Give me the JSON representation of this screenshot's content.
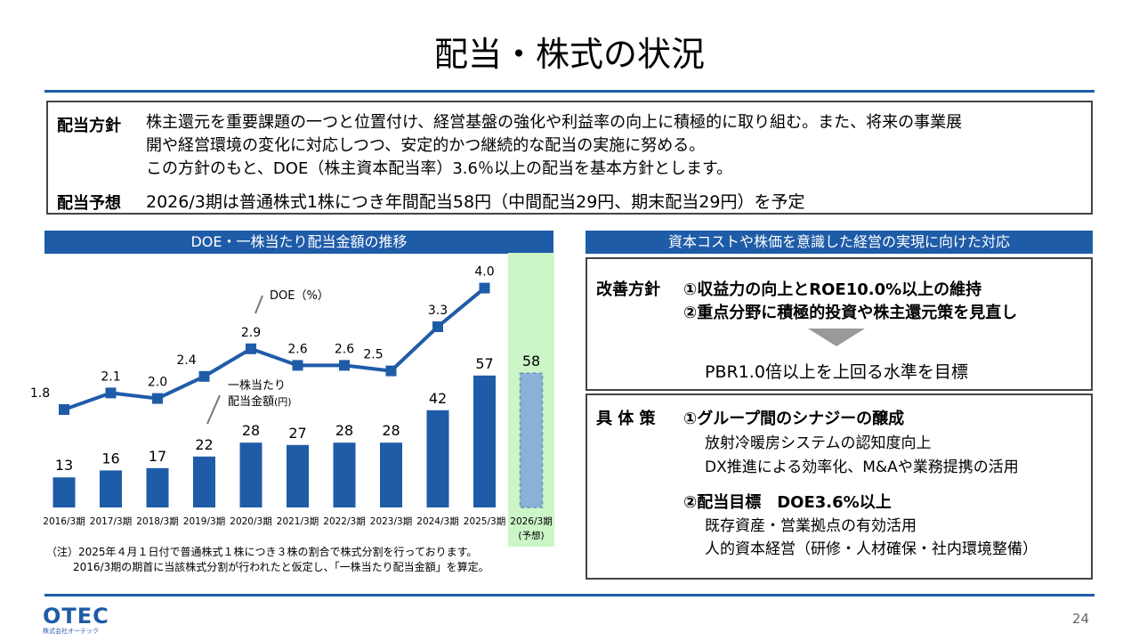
{
  "title": "配当・株式の状況",
  "policy": {
    "label1": "配当方針",
    "lines": [
      "株主還元を重要課題の一つと位置付け、経営基盤の強化や利益率の向上に積極的に取り組む。また、将来の事業展",
      "開や経営環境の変化に対応しつつ、安定的かつ継続的な配当の実施に努める。",
      "この方針のもと、DOE（株主資本配当率）3.6％以上の配当を基本方針とします。"
    ],
    "label2": "配当予想",
    "forecast": "2026/3期は普通株式1株につき年間配当58円（中間配当29円、期末配当29円）を予定"
  },
  "left_header": "DOE・一株当たり配当金額の推移",
  "right_header": "資本コストや株価を意識した経営の実現に向けた対応",
  "legend": {
    "doe": "DOE（%）",
    "dps_line1": "一株当たり",
    "dps_line2": "配当金額",
    "dps_unit": "(円)"
  },
  "chart_data": {
    "type": "bar+line",
    "categories": [
      "2016/3期",
      "2017/3期",
      "2018/3期",
      "2019/3期",
      "2020/3期",
      "2021/3期",
      "2022/3期",
      "2023/3期",
      "2024/3期",
      "2025/3期",
      "2026/3期"
    ],
    "category_note_last": "(予想)",
    "series": [
      {
        "name": "一株当たり配当金額",
        "type": "bar",
        "values": [
          13,
          16,
          17,
          22,
          28,
          27,
          28,
          28,
          42,
          57,
          58
        ],
        "forecast_index": 10
      },
      {
        "name": "DOE（%）",
        "type": "line",
        "values": [
          1.8,
          2.1,
          2.0,
          2.4,
          2.9,
          2.6,
          2.6,
          2.5,
          3.3,
          4.0,
          null
        ]
      }
    ],
    "bar_labels": [
      "13",
      "16",
      "17",
      "22",
      "28",
      "27",
      "28",
      "28",
      "42",
      "57",
      "58"
    ],
    "line_labels": [
      "1.8",
      "2.1",
      "2.0",
      "2.4",
      "2.9",
      "2.6",
      "2.6",
      "2.5",
      "3.3",
      "4.0"
    ]
  },
  "note": {
    "line1": "（注）2025年４月１日付で普通株式１株につき３株の割合で株式分割を行っております。",
    "line2": "2016/3期の期首に当該株式分割が行われたと仮定し、「一株当たり配当金額」を算定。"
  },
  "improve": {
    "label": "改善方針",
    "item1": "①収益力の向上とROE10.0%以上の維持",
    "item2": "②重点分野に積極的投資や株主還元策を見直し",
    "target": "PBR1.0倍以上を上回る水準を目標"
  },
  "measures": {
    "label": "具 体 策",
    "item1": "①グループ間のシナジーの醸成",
    "item1_sub1": "放射冷暖房システムの認知度向上",
    "item1_sub2": "DX推進による効率化、M&Aや業務提携の活用",
    "item2": "②配当目標　DOE3.6%以上",
    "item2_sub1": "既存資産・営業拠点の有効活用",
    "item2_sub2": "人的資本経営（研修・人材確保・社内環境整備）"
  },
  "footer": {
    "logo": "OTEC",
    "logo_sub": "株式会社オーテック",
    "page": "24"
  },
  "colors": {
    "primary": "#1f5ca8",
    "forecast_bar": "#8ab1d6",
    "forecast_bg": "#ccf5c8",
    "arrow": "#999999"
  }
}
